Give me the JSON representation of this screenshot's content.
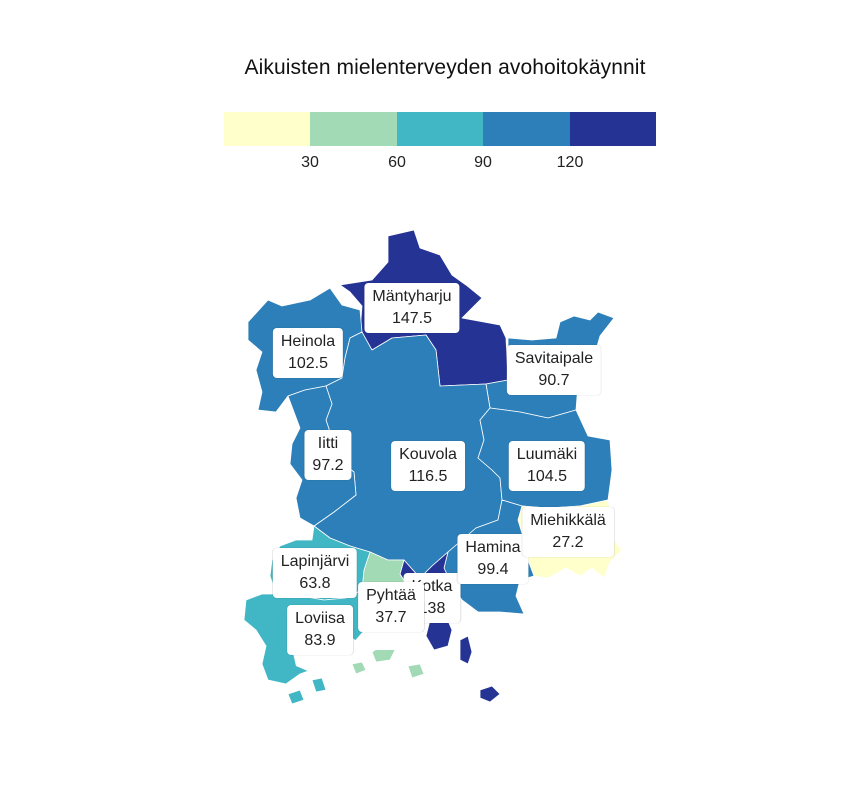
{
  "title": "Aikuisten mielenterveyden avohoitokäynnit",
  "legend": {
    "colors": [
      "#ffffcc",
      "#a1dab4",
      "#41b6c4",
      "#2c7fb8",
      "#253494"
    ],
    "ticks": [
      "30",
      "60",
      "90",
      "120"
    ]
  },
  "regions": [
    {
      "name": "Mäntyharju",
      "value": "147.5",
      "color": "#253494"
    },
    {
      "name": "Heinola",
      "value": "102.5",
      "color": "#2c7fb8"
    },
    {
      "name": "Savitaipale",
      "value": "90.7",
      "color": "#2c7fb8"
    },
    {
      "name": "Iitti",
      "value": "97.2",
      "color": "#2c7fb8"
    },
    {
      "name": "Kouvola",
      "value": "116.5",
      "color": "#2c7fb8"
    },
    {
      "name": "Luumäki",
      "value": "104.5",
      "color": "#2c7fb8"
    },
    {
      "name": "Miehikkälä",
      "value": "27.2",
      "color": "#ffffcc"
    },
    {
      "name": "Hamina",
      "value": "99.4",
      "color": "#2c7fb8"
    },
    {
      "name": "Lapinjärvi",
      "value": "63.8",
      "color": "#41b6c4"
    },
    {
      "name": "Kotka",
      "value": "138",
      "color": "#253494"
    },
    {
      "name": "Pyhtää",
      "value": "37.7",
      "color": "#a1dab4"
    },
    {
      "name": "Loviisa",
      "value": "83.9",
      "color": "#41b6c4"
    }
  ]
}
